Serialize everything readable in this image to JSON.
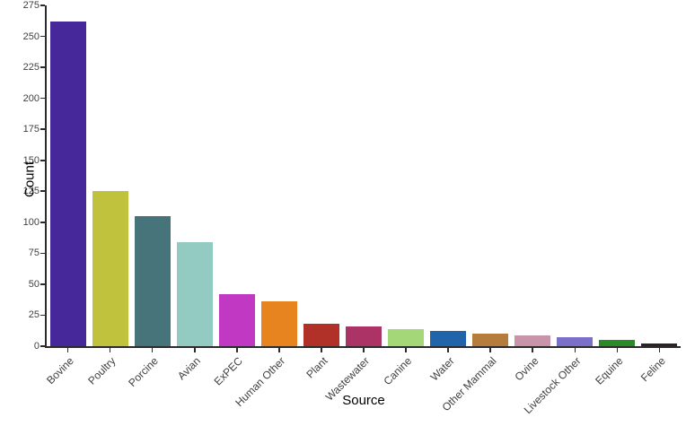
{
  "chart_data": {
    "type": "bar",
    "title": "",
    "xlabel": "Source",
    "ylabel": "Count",
    "categories": [
      "Bovine",
      "Poultry",
      "Porcine",
      "Avian",
      "ExPEC",
      "Human Other",
      "Plant",
      "Wastewater",
      "Canine",
      "Water",
      "Other Mammal",
      "Ovine",
      "Livestock Other",
      "Equine",
      "Feline"
    ],
    "values": [
      262,
      125,
      105,
      84,
      42,
      36,
      18,
      16,
      14,
      12,
      10,
      9,
      7,
      5,
      2
    ],
    "bar_colors": [
      "#46289a",
      "#c0c13c",
      "#47747b",
      "#93cbc2",
      "#c138c3",
      "#e88420",
      "#b13028",
      "#ab3366",
      "#a3d778",
      "#2264aa",
      "#b67c3c",
      "#c794aa",
      "#7b70c9",
      "#2b8a28",
      "#2a2228"
    ],
    "ylim": [
      0,
      275
    ],
    "yticks": [
      0,
      25,
      50,
      75,
      100,
      125,
      150,
      175,
      200,
      225,
      250,
      275
    ],
    "x_tick_label_rotation_deg": 45,
    "grid": false,
    "legend": "none",
    "background_color": "#ffffff",
    "axis_line_color": "#2b2b2b",
    "tick_label_color": "#404040",
    "axis_title_color": "#000000"
  }
}
